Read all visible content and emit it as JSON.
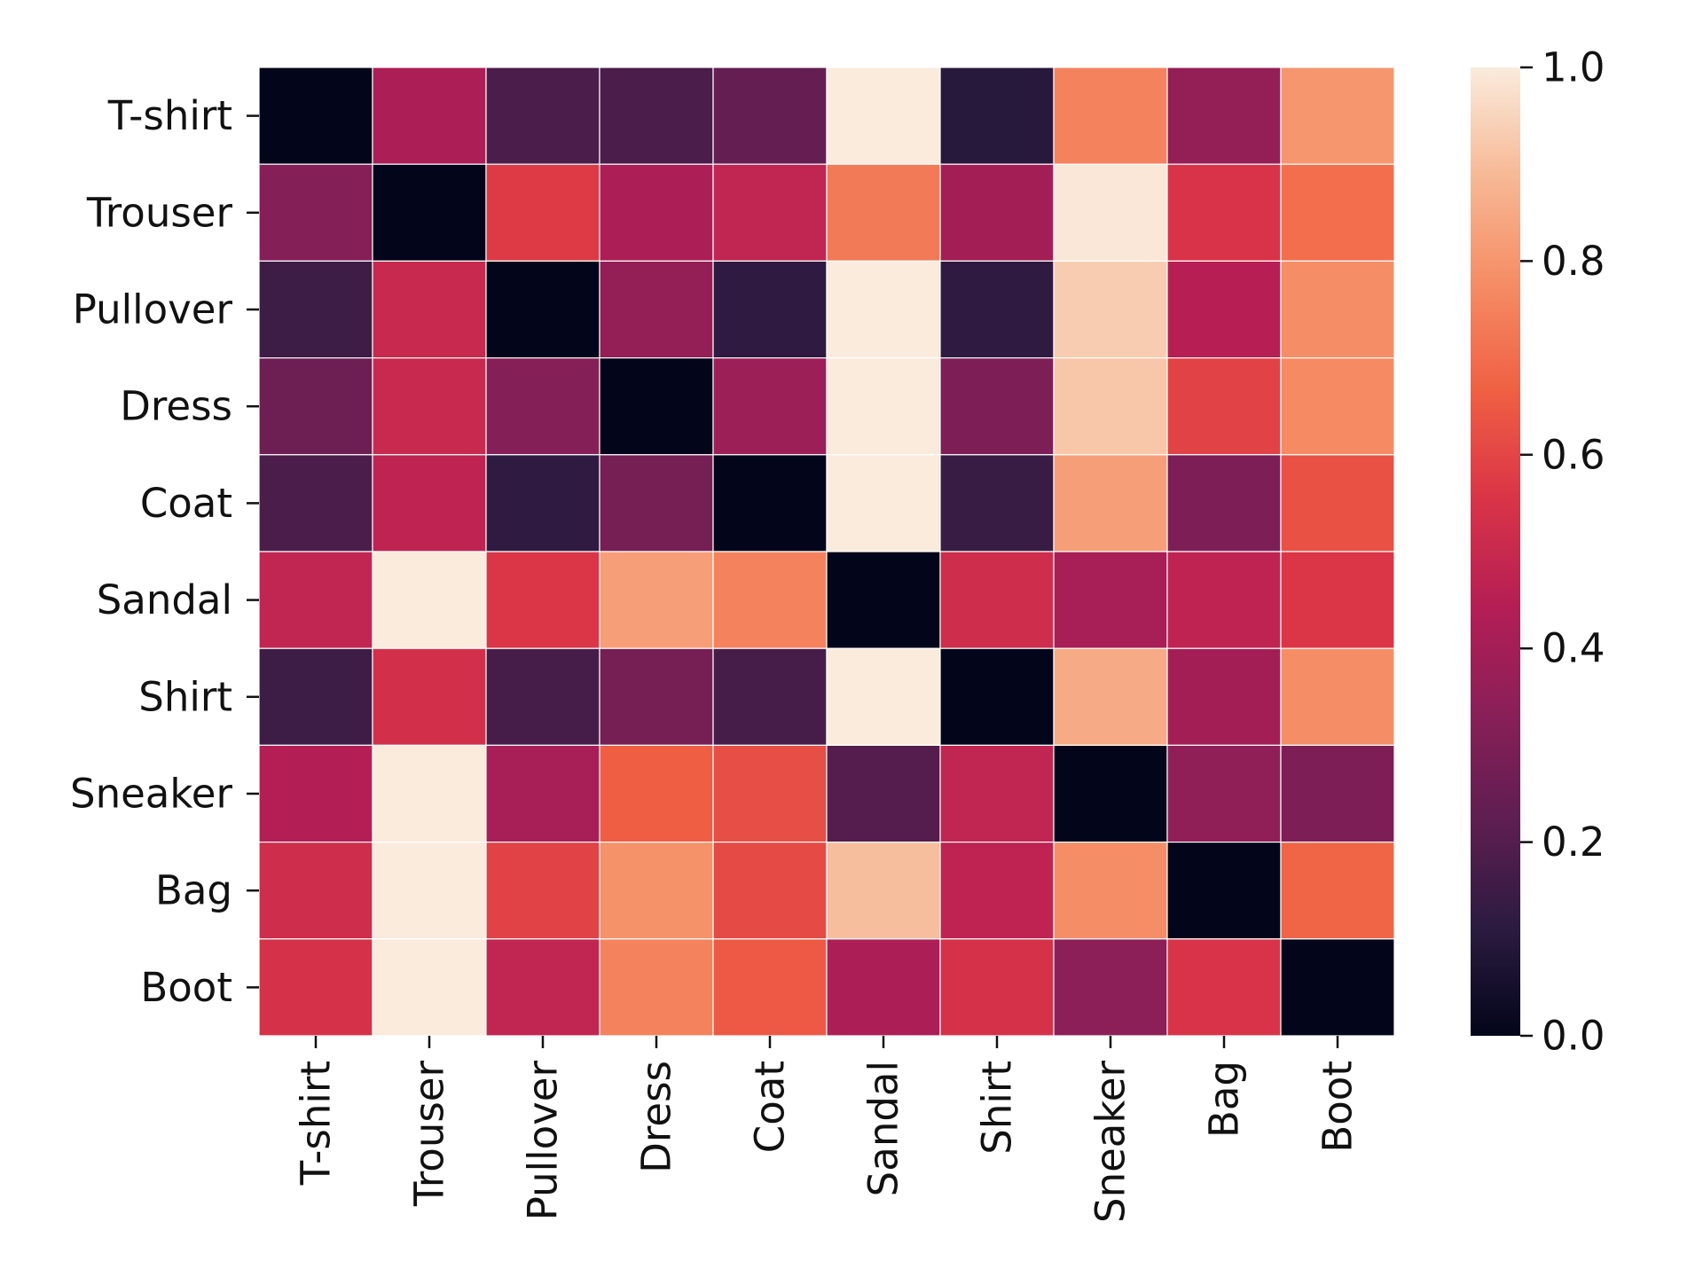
{
  "chart_data": {
    "type": "heatmap",
    "title": "",
    "xlabel": "",
    "ylabel": "",
    "rows": [
      "T-shirt",
      "Trouser",
      "Pullover",
      "Dress",
      "Coat",
      "Sandal",
      "Shirt",
      "Sneaker",
      "Bag",
      "Boot"
    ],
    "columns": [
      "T-shirt",
      "Trouser",
      "Pullover",
      "Dress",
      "Coat",
      "Sandal",
      "Shirt",
      "Sneaker",
      "Bag",
      "Boot"
    ],
    "values": [
      [
        0.0,
        0.42,
        0.18,
        0.18,
        0.24,
        1.0,
        0.1,
        0.75,
        0.36,
        0.8
      ],
      [
        0.32,
        0.0,
        0.57,
        0.42,
        0.48,
        0.73,
        0.4,
        0.99,
        0.55,
        0.7
      ],
      [
        0.15,
        0.5,
        0.0,
        0.36,
        0.12,
        1.0,
        0.12,
        0.93,
        0.45,
        0.78
      ],
      [
        0.26,
        0.5,
        0.32,
        0.0,
        0.38,
        1.0,
        0.3,
        0.92,
        0.59,
        0.77
      ],
      [
        0.18,
        0.47,
        0.12,
        0.28,
        0.0,
        1.0,
        0.14,
        0.82,
        0.3,
        0.63
      ],
      [
        0.48,
        1.0,
        0.56,
        0.82,
        0.75,
        0.0,
        0.52,
        0.41,
        0.47,
        0.56
      ],
      [
        0.15,
        0.53,
        0.17,
        0.28,
        0.17,
        1.0,
        0.0,
        0.85,
        0.4,
        0.78
      ],
      [
        0.44,
        1.0,
        0.41,
        0.66,
        0.62,
        0.2,
        0.48,
        0.0,
        0.35,
        0.3
      ],
      [
        0.52,
        1.0,
        0.59,
        0.79,
        0.61,
        0.9,
        0.47,
        0.78,
        0.0,
        0.68
      ],
      [
        0.54,
        1.0,
        0.48,
        0.75,
        0.65,
        0.42,
        0.54,
        0.34,
        0.55,
        0.0
      ]
    ],
    "colorbar": {
      "range": [
        0.0,
        1.0
      ],
      "ticks": [
        0.0,
        0.2,
        0.4,
        0.6,
        0.8,
        1.0
      ],
      "tick_labels": [
        "0.0",
        "0.2",
        "0.4",
        "0.6",
        "0.8",
        "1.0"
      ],
      "colormap": "rocket",
      "colormap_stops": [
        "#03051a",
        "#2b1b40",
        "#5e1e51",
        "#8a1f58",
        "#b51e55",
        "#da3447",
        "#f06043",
        "#f58d65",
        "#f7b996",
        "#faebdd"
      ]
    },
    "grid": false,
    "legend": "right"
  }
}
